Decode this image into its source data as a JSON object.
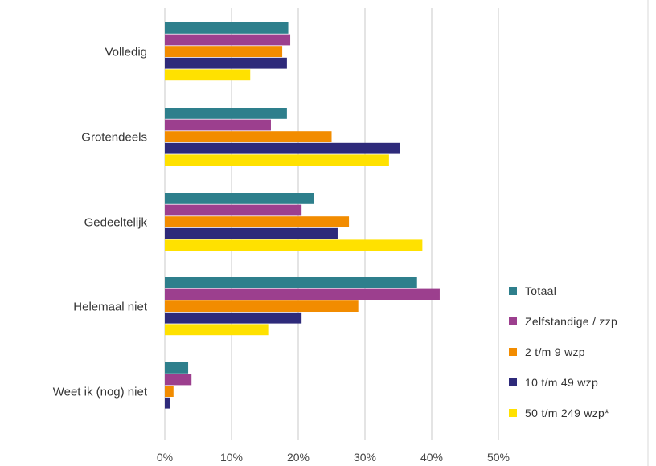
{
  "chart_data": {
    "type": "bar",
    "orientation": "horizontal",
    "categories": [
      "Volledig",
      "Grotendeels",
      "Gedeeltelijk",
      "Helemaal niet",
      "Weet ik (nog) niet"
    ],
    "series": [
      {
        "name": "Totaal",
        "color": "#2e7f8c",
        "values": [
          18.5,
          18.3,
          22.3,
          37.8,
          3.5
        ]
      },
      {
        "name": "Zelfstandige / zzp",
        "color": "#9c3f8e",
        "values": [
          18.8,
          15.9,
          20.5,
          41.2,
          4.0
        ]
      },
      {
        "name": "2 t/m 9 wzp",
        "color": "#f28c00",
        "values": [
          17.6,
          25.0,
          27.6,
          29.0,
          1.3
        ]
      },
      {
        "name": "10 t/m 49 wzp",
        "color": "#2e2a7a",
        "values": [
          18.3,
          35.2,
          25.9,
          20.5,
          0.8
        ]
      },
      {
        "name": "50 t/m 249 wzp*",
        "color": "#ffe100",
        "values": [
          12.8,
          33.6,
          38.6,
          15.5,
          0.0
        ]
      }
    ],
    "xlim": [
      0,
      50
    ],
    "x_ticks": [
      0,
      10,
      20,
      30,
      40,
      50
    ],
    "x_tick_labels": [
      "0%",
      "10%",
      "20%",
      "30%",
      "40%",
      "50%"
    ],
    "grid": "vertical",
    "legend": "bottom-right",
    "title": "",
    "xlabel": "",
    "ylabel": ""
  }
}
